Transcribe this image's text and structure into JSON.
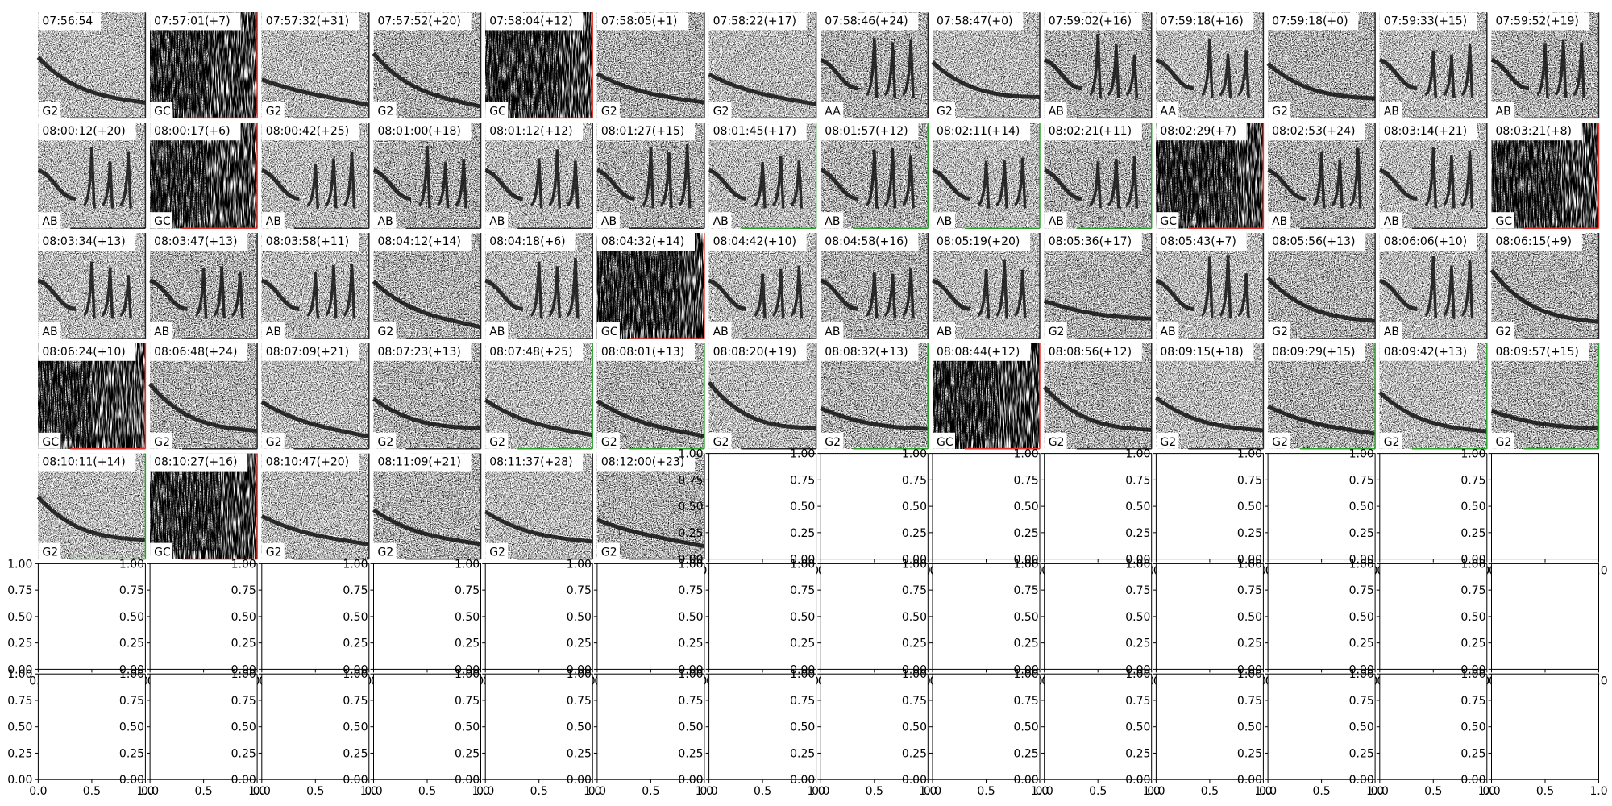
{
  "panels": [
    {
      "title": "07:56:54",
      "label": "G2",
      "border": "black"
    },
    {
      "title": "07:57:01(+7)",
      "label": "GC",
      "border": "red"
    },
    {
      "title": "07:57:32(+31)",
      "label": "G2",
      "border": "black"
    },
    {
      "title": "07:57:52(+20)",
      "label": "G2",
      "border": "black"
    },
    {
      "title": "07:58:04(+12)",
      "label": "GC",
      "border": "red"
    },
    {
      "title": "07:58:05(+1)",
      "label": "G2",
      "border": "black"
    },
    {
      "title": "07:58:22(+17)",
      "label": "G2",
      "border": "black"
    },
    {
      "title": "07:58:46(+24)",
      "label": "AA",
      "border": "black"
    },
    {
      "title": "07:58:47(+0)",
      "label": "G2",
      "border": "black"
    },
    {
      "title": "07:59:02(+16)",
      "label": "AB",
      "border": "black"
    },
    {
      "title": "07:59:18(+16)",
      "label": "AA",
      "border": "black"
    },
    {
      "title": "07:59:18(+0)",
      "label": "G2",
      "border": "black"
    },
    {
      "title": "07:59:33(+15)",
      "label": "AB",
      "border": "black"
    },
    {
      "title": "07:59:52(+19)",
      "label": "AB",
      "border": "black"
    },
    {
      "title": "08:00:12(+20)",
      "label": "AB",
      "border": "black"
    },
    {
      "title": "08:00:17(+6)",
      "label": "GC",
      "border": "red"
    },
    {
      "title": "08:00:42(+25)",
      "label": "AB",
      "border": "black"
    },
    {
      "title": "08:01:00(+18)",
      "label": "AB",
      "border": "black"
    },
    {
      "title": "08:01:12(+12)",
      "label": "AB",
      "border": "black"
    },
    {
      "title": "08:01:27(+15)",
      "label": "AB",
      "border": "black"
    },
    {
      "title": "08:01:45(+17)",
      "label": "AB",
      "border": "green"
    },
    {
      "title": "08:01:57(+12)",
      "label": "AB",
      "border": "green"
    },
    {
      "title": "08:02:11(+14)",
      "label": "AB",
      "border": "green"
    },
    {
      "title": "08:02:21(+11)",
      "label": "AB",
      "border": "green"
    },
    {
      "title": "08:02:29(+7)",
      "label": "GC",
      "border": "red"
    },
    {
      "title": "08:02:53(+24)",
      "label": "AB",
      "border": "black"
    },
    {
      "title": "08:03:14(+21)",
      "label": "AB",
      "border": "black"
    },
    {
      "title": "08:03:21(+8)",
      "label": "GC",
      "border": "red"
    },
    {
      "title": "08:03:34(+13)",
      "label": "AB",
      "border": "black"
    },
    {
      "title": "08:03:47(+13)",
      "label": "AB",
      "border": "black"
    },
    {
      "title": "08:03:58(+11)",
      "label": "AB",
      "border": "black"
    },
    {
      "title": "08:04:12(+14)",
      "label": "G2",
      "border": "black"
    },
    {
      "title": "08:04:18(+6)",
      "label": "AB",
      "border": "black"
    },
    {
      "title": "08:04:32(+14)",
      "label": "GC",
      "border": "red"
    },
    {
      "title": "08:04:42(+10)",
      "label": "AB",
      "border": "black"
    },
    {
      "title": "08:04:58(+16)",
      "label": "AB",
      "border": "black"
    },
    {
      "title": "08:05:19(+20)",
      "label": "AB",
      "border": "black"
    },
    {
      "title": "08:05:36(+17)",
      "label": "G2",
      "border": "black"
    },
    {
      "title": "08:05:43(+7)",
      "label": "AB",
      "border": "black"
    },
    {
      "title": "08:05:56(+13)",
      "label": "G2",
      "border": "black"
    },
    {
      "title": "08:06:06(+10)",
      "label": "AB",
      "border": "black"
    },
    {
      "title": "08:06:15(+9)",
      "label": "G2",
      "border": "black"
    },
    {
      "title": "08:06:24(+10)",
      "label": "GC",
      "border": "red"
    },
    {
      "title": "08:06:48(+24)",
      "label": "G2",
      "border": "black"
    },
    {
      "title": "08:07:09(+21)",
      "label": "G2",
      "border": "black"
    },
    {
      "title": "08:07:23(+13)",
      "label": "G2",
      "border": "black"
    },
    {
      "title": "08:07:48(+25)",
      "label": "G2",
      "border": "green"
    },
    {
      "title": "08:08:01(+13)",
      "label": "G2",
      "border": "green"
    },
    {
      "title": "08:08:20(+19)",
      "label": "G2",
      "border": "black"
    },
    {
      "title": "08:08:32(+13)",
      "label": "G2",
      "border": "green"
    },
    {
      "title": "08:08:44(+12)",
      "label": "GC",
      "border": "red"
    },
    {
      "title": "08:08:56(+12)",
      "label": "G2",
      "border": "black"
    },
    {
      "title": "08:09:15(+18)",
      "label": "G2",
      "border": "black"
    },
    {
      "title": "08:09:29(+15)",
      "label": "G2",
      "border": "green"
    },
    {
      "title": "08:09:42(+13)",
      "label": "G2",
      "border": "green"
    },
    {
      "title": "08:09:57(+15)",
      "label": "G2",
      "border": "green"
    },
    {
      "title": "08:10:11(+14)",
      "label": "G2",
      "border": "green"
    },
    {
      "title": "08:10:27(+16)",
      "label": "GC",
      "border": "red"
    },
    {
      "title": "08:10:47(+20)",
      "label": "G2",
      "border": "black"
    },
    {
      "title": "08:11:09(+21)",
      "label": "G2",
      "border": "black"
    },
    {
      "title": "08:11:37(+28)",
      "label": "G2",
      "border": "black"
    },
    {
      "title": "08:12:00(+23)",
      "label": "G2",
      "border": "black"
    }
  ],
  "empty_axes": {
    "yticks": [
      "0.00",
      "0.25",
      "0.50",
      "0.75",
      "1.00"
    ],
    "xticks": [
      "0.0",
      "0.5",
      "1.0"
    ]
  }
}
